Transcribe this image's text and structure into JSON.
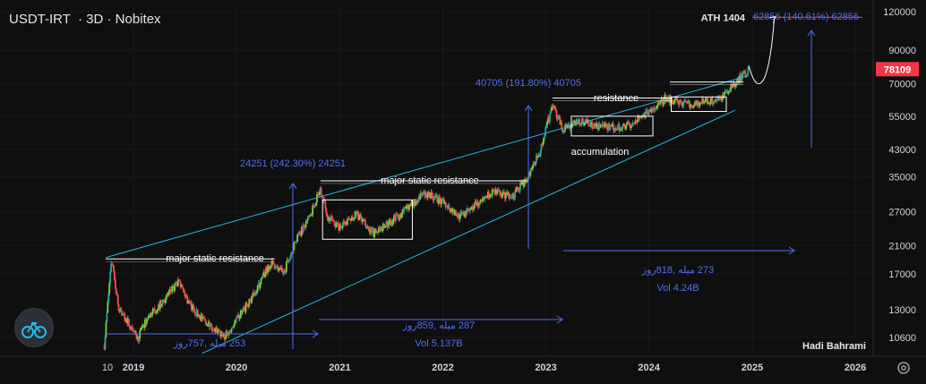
{
  "header": {
    "symbol": "USDT-IRT",
    "interval": "3D",
    "exchange": "Nobitex",
    "separator": "·"
  },
  "author": "Hadi Bahrami",
  "price_label": {
    "value": "78109",
    "color": "#f23645"
  },
  "colors": {
    "background": "#0f0f10",
    "up_candle": "#26a69a",
    "up_green": "#7cd13a",
    "down_candle": "#ef5350",
    "channel": "#2bb5e6",
    "measure": "#4f6ff0",
    "ath_line": "#f23645",
    "box": "#ffffff"
  },
  "chart_data": {
    "type": "candlestick",
    "price_scale": "log",
    "ylim": [
      9200,
      124000
    ],
    "y_ticks": [
      "120000",
      "90000",
      "70000",
      "55000",
      "43000",
      "35000",
      "27000",
      "21000",
      "17000",
      "13000",
      "10600"
    ],
    "x_ticks": [
      "10",
      "2019",
      "2020",
      "2021",
      "2022",
      "2023",
      "2024",
      "2025",
      "2026"
    ],
    "annotations": {
      "ath": "ATH 1404",
      "ath_measure": "62856 (140.61%) 62856",
      "measure_2021": "24251 (242.30%) 24251",
      "measure_2023": "40705 (191.80%) 40705",
      "resistance_2019": "major static resistance",
      "resistance_2021": "major static resistance",
      "resistance_2023": "resistance",
      "accumulation": "accumulation",
      "range_2019": "253 میله ,757روز",
      "range_2021": "287 میله ,859روز",
      "vol_2021": "Vol 5.137B",
      "range_2023": "273 میله ,818روز",
      "vol_2023": "Vol 4.24B"
    },
    "price_path": [
      [
        "2018-09-20",
        10000
      ],
      [
        "2018-10-15",
        19000
      ],
      [
        "2018-11-10",
        13000
      ],
      [
        "2018-12-10",
        12000
      ],
      [
        "2019-01-15",
        10500
      ],
      [
        "2019-02-20",
        12200
      ],
      [
        "2019-03-20",
        13000
      ],
      [
        "2019-05-01",
        14500
      ],
      [
        "2019-06-10",
        16000
      ],
      [
        "2019-07-20",
        13500
      ],
      [
        "2019-08-20",
        12500
      ],
      [
        "2019-10-01",
        11500
      ],
      [
        "2019-11-20",
        10600
      ],
      [
        "2020-01-01",
        12000
      ],
      [
        "2020-03-01",
        14500
      ],
      [
        "2020-05-01",
        18500
      ],
      [
        "2020-06-15",
        17000
      ],
      [
        "2020-08-01",
        22000
      ],
      [
        "2020-09-15",
        26000
      ],
      [
        "2020-10-25",
        32000
      ],
      [
        "2020-11-20",
        26000
      ],
      [
        "2021-01-01",
        24000
      ],
      [
        "2021-03-01",
        26500
      ],
      [
        "2021-05-01",
        23000
      ],
      [
        "2021-07-01",
        25000
      ],
      [
        "2021-09-01",
        28000
      ],
      [
        "2021-11-01",
        31000
      ],
      [
        "2022-01-01",
        29000
      ],
      [
        "2022-03-01",
        26000
      ],
      [
        "2022-05-01",
        28500
      ],
      [
        "2022-07-01",
        31500
      ],
      [
        "2022-09-01",
        30000
      ],
      [
        "2022-10-20",
        34000
      ],
      [
        "2022-12-10",
        42000
      ],
      [
        "2023-01-25",
        60000
      ],
      [
        "2023-03-01",
        50000
      ],
      [
        "2023-05-01",
        53000
      ],
      [
        "2023-07-01",
        51000
      ],
      [
        "2023-09-01",
        50500
      ],
      [
        "2023-11-01",
        52000
      ],
      [
        "2024-01-01",
        57000
      ],
      [
        "2024-03-01",
        63000
      ],
      [
        "2024-05-01",
        60000
      ],
      [
        "2024-07-01",
        61000
      ],
      [
        "2024-09-01",
        62000
      ],
      [
        "2024-11-01",
        70000
      ],
      [
        "2024-12-20",
        78109
      ]
    ]
  }
}
